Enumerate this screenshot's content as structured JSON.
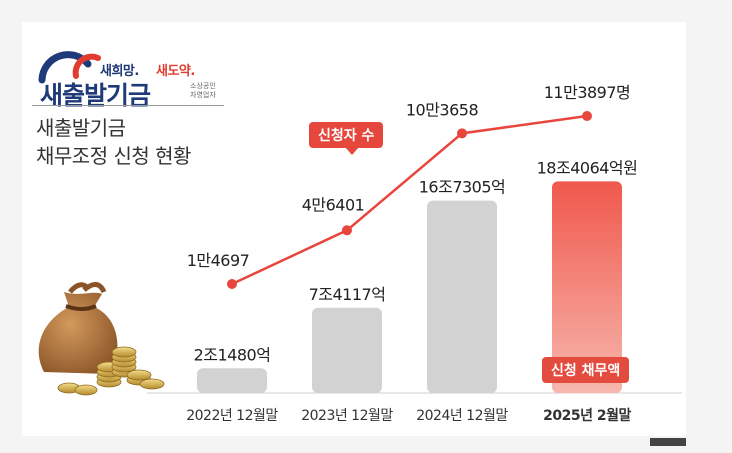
{
  "logo": {
    "slogan_part1": "새희망.",
    "slogan_part2": "새도약.",
    "brand": "새출발기금",
    "tagline_line1": "소상공인",
    "tagline_line2": "자영업자"
  },
  "title_line1": "새출발기금",
  "title_line2": "채무조정 신청 현황",
  "labels": {
    "applicants_tag": "신청자 수",
    "debt_tag": "신청 채무액"
  },
  "colors": {
    "line": "#e8453c",
    "bar_gray": "#d2d2d2",
    "bar_red_top": "#f0584c",
    "bar_red_bottom": "#f7b7ae",
    "navy": "#1f3a78"
  },
  "chart_data": {
    "type": "bar",
    "categories": [
      "2022년 12월말",
      "2023년 12월말",
      "2024년 12월말",
      "2025년 2월말"
    ],
    "series": [
      {
        "name": "신청 채무액",
        "type": "bar",
        "values": [
          2.148,
          7.4117,
          16.7305,
          18.4064
        ],
        "unit": "조원",
        "labels": [
          "2조1480억",
          "7조4117억",
          "16조7305억",
          "18조4064억원"
        ]
      },
      {
        "name": "신청자 수",
        "type": "line",
        "values": [
          14697,
          46401,
          103658,
          113897
        ],
        "unit": "명",
        "labels": [
          "1만4697",
          "4만6401",
          "10만3658",
          "11만3897명"
        ]
      }
    ],
    "highlight_category": 3
  }
}
